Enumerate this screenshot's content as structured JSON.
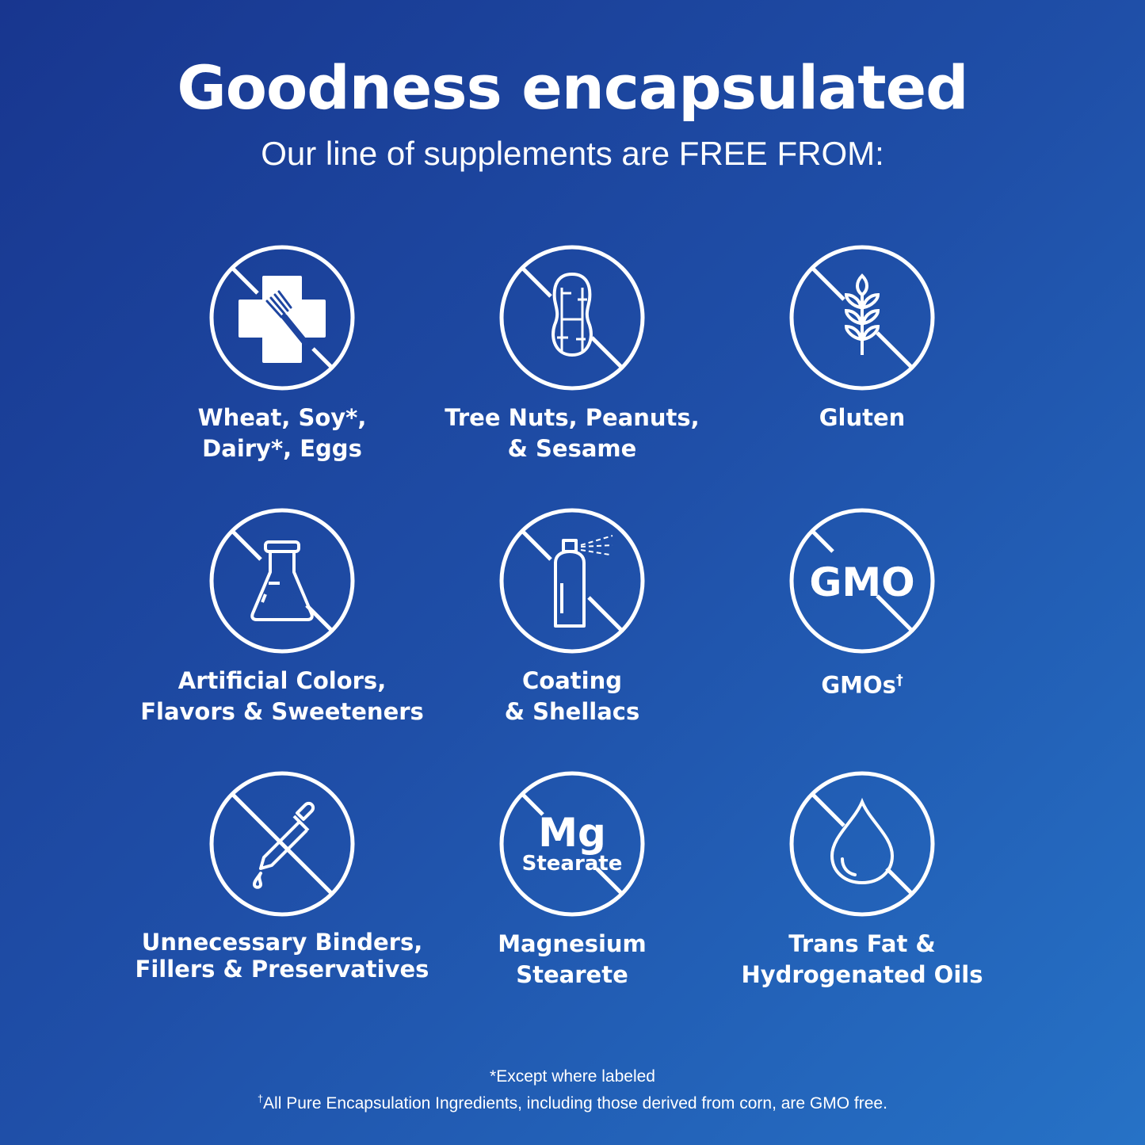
{
  "header": {
    "title": "Goodness encapsulated",
    "subtitle": "Our line of supplements are FREE FROM:"
  },
  "items": [
    {
      "label": "Wheat, Soy*,\nDairy*, Eggs",
      "icon": "allergen-cross-fork-icon"
    },
    {
      "label": "Tree Nuts, Peanuts,\n& Sesame",
      "icon": "peanut-icon"
    },
    {
      "label": "Gluten",
      "icon": "wheat-icon"
    },
    {
      "label": "Artificial Colors,\nFlavors & Sweeteners",
      "icon": "flask-icon"
    },
    {
      "label": "Coating\n& Shellacs",
      "icon": "spray-can-icon"
    },
    {
      "label": "GMOs",
      "label_sup": "†",
      "icon": "gmo-icon",
      "icon_text": "GMO"
    },
    {
      "label": "Unnecessary Binders,\nFillers & Preservatives",
      "icon": "dropper-icon"
    },
    {
      "label": "Magnesium\nStearete",
      "icon": "mg-stearate-icon",
      "icon_text": "Mg",
      "icon_subtext": "Stearate"
    },
    {
      "label": "Trans Fat &\nHydrogenated Oils",
      "icon": "oil-drop-icon"
    }
  ],
  "footer": {
    "note1": "*Except where labeled",
    "note2_sup": "†",
    "note2": "All Pure Encapsulation Ingredients, including those derived from corn, are GMO free."
  },
  "colors": {
    "bg_start": "#18368f",
    "bg_end": "#2672c6",
    "foreground": "#ffffff"
  }
}
